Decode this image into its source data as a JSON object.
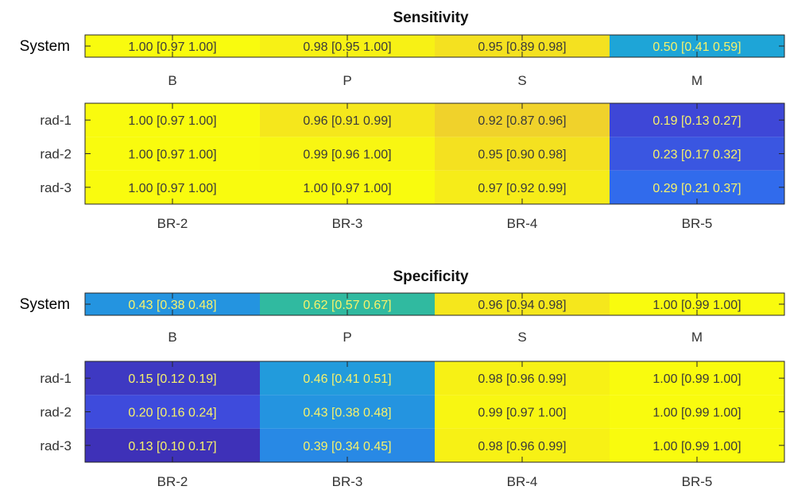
{
  "chart_data": [
    {
      "type": "heatmap",
      "title": "Sensitivity",
      "panels": [
        {
          "rows": [
            "System"
          ],
          "columns": [
            "B",
            "P",
            "S",
            "M"
          ],
          "values": [
            [
              1.0,
              0.98,
              0.95,
              0.5
            ]
          ],
          "labels": [
            [
              "1.00 [0.97 1.00]",
              "0.98 [0.95 1.00]",
              "0.95 [0.89 0.98]",
              "0.50 [0.41 0.59]"
            ]
          ]
        },
        {
          "rows": [
            "rad-1",
            "rad-2",
            "rad-3"
          ],
          "columns": [
            "BR-2",
            "BR-3",
            "BR-4",
            "BR-5"
          ],
          "values": [
            [
              1.0,
              0.96,
              0.92,
              0.19
            ],
            [
              1.0,
              0.99,
              0.95,
              0.23
            ],
            [
              1.0,
              1.0,
              0.97,
              0.29
            ]
          ],
          "labels": [
            [
              "1.00 [0.97 1.00]",
              "0.96 [0.91 0.99]",
              "0.92 [0.87 0.96]",
              "0.19 [0.13 0.27]"
            ],
            [
              "1.00 [0.97 1.00]",
              "0.99 [0.96 1.00]",
              "0.95 [0.90 0.98]",
              "0.23 [0.17 0.32]"
            ],
            [
              "1.00 [0.97 1.00]",
              "1.00 [0.97 1.00]",
              "0.97 [0.92 0.99]",
              "0.29 [0.21 0.37]"
            ]
          ]
        }
      ]
    },
    {
      "type": "heatmap",
      "title": "Specificity",
      "panels": [
        {
          "rows": [
            "System"
          ],
          "columns": [
            "B",
            "P",
            "S",
            "M"
          ],
          "values": [
            [
              0.43,
              0.62,
              0.96,
              1.0
            ]
          ],
          "labels": [
            [
              "0.43 [0.38 0.48]",
              "0.62 [0.57 0.67]",
              "0.96 [0.94 0.98]",
              "1.00 [0.99 1.00]"
            ]
          ]
        },
        {
          "rows": [
            "rad-1",
            "rad-2",
            "rad-3"
          ],
          "columns": [
            "BR-2",
            "BR-3",
            "BR-4",
            "BR-5"
          ],
          "values": [
            [
              0.15,
              0.46,
              0.98,
              1.0
            ],
            [
              0.2,
              0.43,
              0.99,
              1.0
            ],
            [
              0.13,
              0.39,
              0.98,
              1.0
            ]
          ],
          "labels": [
            [
              "0.15 [0.12 0.19]",
              "0.46 [0.41 0.51]",
              "0.98 [0.96 0.99]",
              "1.00 [0.99 1.00]"
            ],
            [
              "0.20 [0.16 0.24]",
              "0.43 [0.38 0.48]",
              "0.99 [0.97 1.00]",
              "1.00 [0.99 1.00]"
            ],
            [
              "0.13 [0.10 0.17]",
              "0.39 [0.34 0.45]",
              "0.98 [0.96 0.99]",
              "1.00 [0.99 1.00]"
            ]
          ]
        }
      ]
    }
  ],
  "colormap": "parula",
  "color_range": [
    0,
    1
  ],
  "colors": {
    "low": "#3e26a8",
    "mid": "#2e9fd8",
    "high": "#f9fb0e",
    "text_on_light": "#3a3a3a",
    "text_on_dark": "#f7f26b"
  }
}
